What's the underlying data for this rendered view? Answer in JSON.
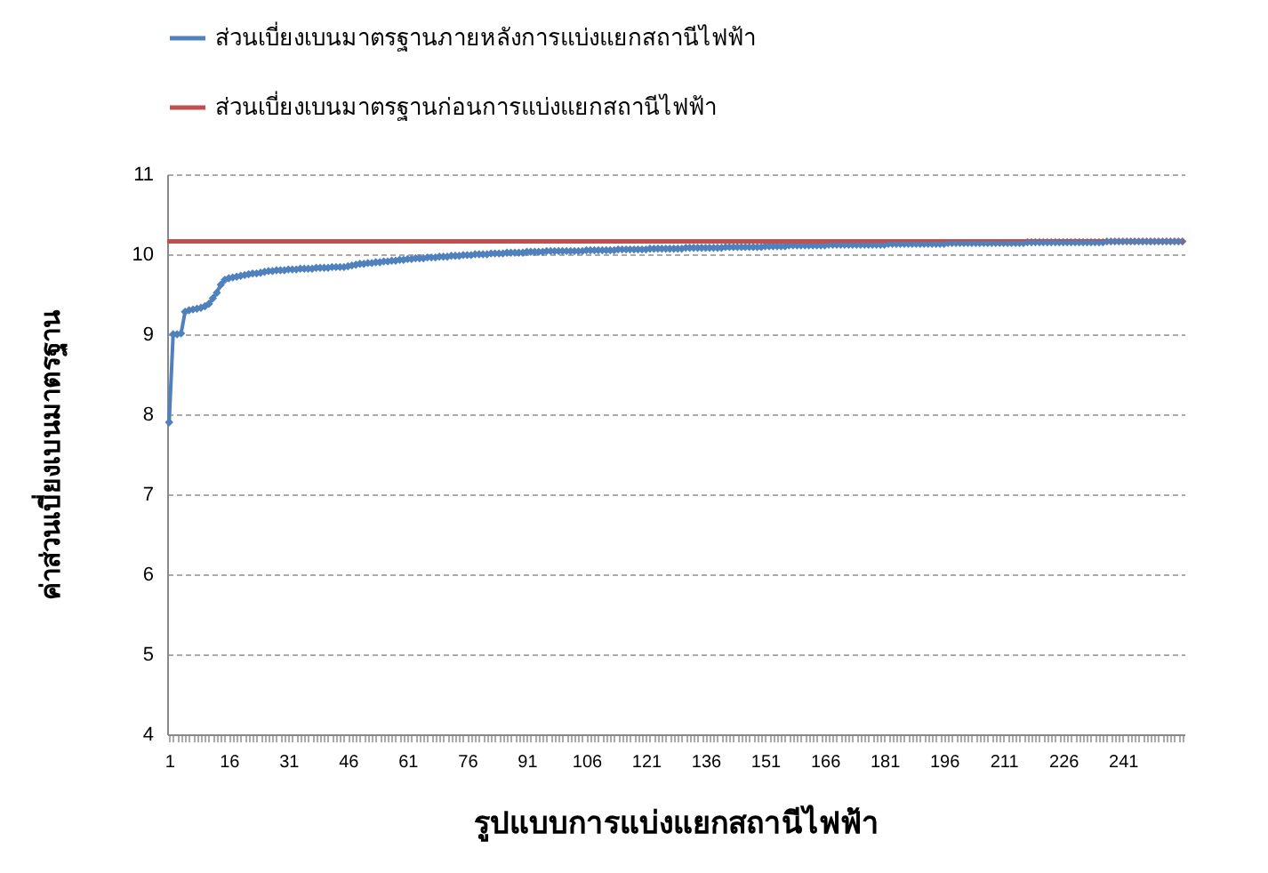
{
  "chart_data": {
    "type": "line",
    "xlabel": "รูปแบบการแบ่งแยกสถานีไฟฟ้า",
    "ylabel": "ค่าส่วนเบี่ยงเบนมาตรฐาน",
    "categories": [
      "1",
      null,
      null,
      null,
      null,
      null,
      null,
      null,
      null,
      null,
      null,
      null,
      null,
      null,
      null,
      "16",
      null,
      null,
      null,
      null,
      null,
      null,
      null,
      null,
      null,
      null,
      null,
      null,
      null,
      null,
      "31",
      null,
      null,
      null,
      null,
      null,
      null,
      null,
      null,
      null,
      null,
      null,
      null,
      null,
      null,
      "46",
      null,
      null,
      null,
      null,
      null,
      null,
      null,
      null,
      null,
      null,
      null,
      null,
      null,
      null,
      "61",
      null,
      null,
      null,
      null,
      null,
      null,
      null,
      null,
      null,
      null,
      null,
      null,
      null,
      null,
      "76",
      null,
      null,
      null,
      null,
      null,
      null,
      null,
      null,
      null,
      null,
      null,
      null,
      null,
      null,
      "91",
      null,
      null,
      null,
      null,
      null,
      null,
      null,
      null,
      null,
      null,
      null,
      null,
      null,
      null,
      "106",
      null,
      null,
      null,
      null,
      null,
      null,
      null,
      null,
      null,
      null,
      null,
      null,
      null,
      null,
      "121",
      null,
      null,
      null,
      null,
      null,
      null,
      null,
      null,
      null,
      null,
      null,
      null,
      null,
      null,
      "136",
      null,
      null,
      null,
      null,
      null,
      null,
      null,
      null,
      null,
      null,
      null,
      null,
      null,
      null,
      "151",
      null,
      null,
      null,
      null,
      null,
      null,
      null,
      null,
      null,
      null,
      null,
      null,
      null,
      null,
      "166",
      null,
      null,
      null,
      null,
      null,
      null,
      null,
      null,
      null,
      null,
      null,
      null,
      null,
      null,
      "181",
      null,
      null,
      null,
      null,
      null,
      null,
      null,
      null,
      null,
      null,
      null,
      null,
      null,
      null,
      "196",
      null,
      null,
      null,
      null,
      null,
      null,
      null,
      null,
      null,
      null,
      null,
      null,
      null,
      null,
      "211",
      null,
      null,
      null,
      null,
      null,
      null,
      null,
      null,
      null,
      null,
      null,
      null,
      null,
      null,
      "226",
      null,
      null,
      null,
      null,
      null,
      null,
      null,
      null,
      null,
      null,
      null,
      null,
      null,
      null,
      "241",
      null,
      null,
      null,
      null,
      null,
      null,
      null,
      null,
      null,
      null,
      null,
      null,
      null,
      null,
      null
    ],
    "series": [
      {
        "name": "ส่วนเบี่ยงเบนมาตรฐานภายหลังการแบ่งแยกสถานีไฟฟ้า",
        "color": "#4f81bd",
        "values": [
          7.9,
          9.0,
          9.0,
          9.01,
          9.28,
          9.3,
          9.31,
          9.32,
          9.33,
          9.35,
          9.38,
          9.45,
          9.52,
          9.62,
          9.68,
          9.7,
          9.71,
          9.72,
          9.73,
          9.74,
          9.75,
          9.76,
          9.76,
          9.77,
          9.78,
          9.79,
          9.79,
          9.8,
          9.8,
          9.8,
          9.81,
          9.81,
          9.81,
          9.82,
          9.82,
          9.82,
          9.82,
          9.83,
          9.83,
          9.83,
          9.83,
          9.84,
          9.84,
          9.84,
          9.84,
          9.85,
          9.86,
          9.87,
          9.88,
          9.88,
          9.89,
          9.89,
          9.9,
          9.9,
          9.91,
          9.91,
          9.92,
          9.92,
          9.93,
          9.93,
          9.94,
          9.94,
          9.95,
          9.95,
          9.95,
          9.96,
          9.96,
          9.96,
          9.97,
          9.97,
          9.97,
          9.98,
          9.98,
          9.98,
          9.99,
          9.99,
          9.99,
          10,
          10,
          10,
          10,
          10.01,
          10.01,
          10.01,
          10.01,
          10.02,
          10.02,
          10.02,
          10.02,
          10.02,
          10.03,
          10.03,
          10.03,
          10.03,
          10.03,
          10.04,
          10.04,
          10.04,
          10.04,
          10.04,
          10.04,
          10.04,
          10.04,
          10.04,
          10.04,
          10.05,
          10.05,
          10.05,
          10.05,
          10.05,
          10.05,
          10.05,
          10.05,
          10.06,
          10.06,
          10.06,
          10.06,
          10.06,
          10.06,
          10.06,
          10.06,
          10.07,
          10.07,
          10.07,
          10.07,
          10.07,
          10.07,
          10.07,
          10.07,
          10.07,
          10.08,
          10.08,
          10.08,
          10.08,
          10.08,
          10.08,
          10.08,
          10.08,
          10.08,
          10.08,
          10.09,
          10.09,
          10.09,
          10.09,
          10.09,
          10.09,
          10.09,
          10.09,
          10.09,
          10.09,
          10.1,
          10.1,
          10.1,
          10.1,
          10.1,
          10.1,
          10.11,
          10.11,
          10.11,
          10.11,
          10.11,
          10.11,
          10.11,
          10.11,
          10.11,
          10.11,
          10.12,
          10.12,
          10.12,
          10.12,
          10.12,
          10.12,
          10.12,
          10.12,
          10.12,
          10.12,
          10.12,
          10.12,
          10.12,
          10.12,
          10.12,
          10.13,
          10.13,
          10.13,
          10.13,
          10.13,
          10.13,
          10.13,
          10.13,
          10.13,
          10.13,
          10.13,
          10.13,
          10.13,
          10.13,
          10.13,
          10.14,
          10.14,
          10.14,
          10.14,
          10.14,
          10.14,
          10.14,
          10.14,
          10.14,
          10.14,
          10.14,
          10.14,
          10.14,
          10.14,
          10.14,
          10.14,
          10.14,
          10.14,
          10.14,
          10.14,
          10.15,
          10.15,
          10.15,
          10.15,
          10.15,
          10.15,
          10.15,
          10.15,
          10.15,
          10.15,
          10.15,
          10.15,
          10.15,
          10.15,
          10.15,
          10.15,
          10.15,
          10.15,
          10.15,
          10.15,
          10.16,
          10.16,
          10.16,
          10.16,
          10.16,
          10.16,
          10.16,
          10.16,
          10.16,
          10.16,
          10.16,
          10.16,
          10.16,
          10.16,
          10.16,
          10.16,
          10.16,
          10.16,
          10.16,
          10.16
        ]
      }
    ],
    "ref_lines": [
      {
        "axis": "y",
        "value": 10.16,
        "label": "ส่วนเบี่ยงเบนมาตรฐานก่อนการแบ่งแยกสถานีไฟฟ้า",
        "color": "#c0504d"
      }
    ],
    "ylim": [
      4,
      11
    ],
    "yticks": [
      4,
      5,
      6,
      7,
      8,
      9,
      10,
      11
    ],
    "grid": "y",
    "legend": "top",
    "marker": "diamond",
    "line_style": "solid"
  }
}
